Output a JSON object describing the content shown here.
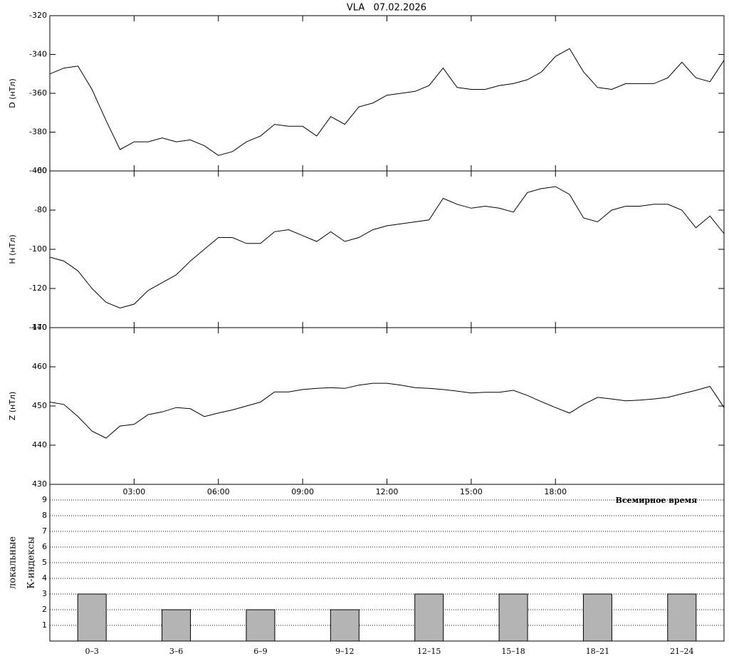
{
  "chart_data": [
    {
      "type": "line",
      "title": "VLA   07.02.2026",
      "ylabel": "D (нТл)",
      "xlim": [
        0,
        24
      ],
      "ylim": [
        -400,
        -320
      ],
      "yticks": [
        -320,
        -340,
        -360,
        -380,
        -400
      ],
      "x": [
        0,
        0.5,
        1,
        1.5,
        2,
        2.5,
        3,
        3.5,
        4,
        4.5,
        5,
        5.5,
        6,
        6.5,
        7,
        7.5,
        8,
        8.5,
        9,
        9.5,
        10,
        10.5,
        11,
        11.5,
        12,
        12.5,
        13,
        13.5,
        14,
        14.5,
        15,
        15.5,
        16,
        16.5,
        17,
        17.5,
        18,
        18.5,
        19,
        19.5,
        20,
        20.5,
        21,
        21.5,
        22,
        22.5,
        23,
        23.5,
        24
      ],
      "series": [
        {
          "name": "D",
          "color": "#000000",
          "values": [
            -350,
            -347,
            -346,
            -358,
            -374,
            -389,
            -385,
            -385,
            -383,
            -385,
            -384,
            -387,
            -392,
            -390,
            -385,
            -382,
            -376,
            -377,
            -377,
            -382,
            -372,
            -376,
            -367,
            -365,
            -361,
            -360,
            -359,
            -356,
            -347,
            -357,
            -358,
            -358,
            -356,
            -355,
            -353,
            -349,
            -341,
            -337,
            -349,
            -357,
            -358,
            -355,
            -355,
            -355,
            -352,
            -344,
            -352,
            -354,
            -343
          ]
        }
      ]
    },
    {
      "type": "line",
      "ylabel": "H (нТл)",
      "xlim": [
        0,
        24
      ],
      "ylim": [
        -140,
        -60
      ],
      "yticks": [
        -60,
        -80,
        -100,
        -120,
        -140
      ],
      "x": [
        0,
        0.5,
        1,
        1.5,
        2,
        2.5,
        3,
        3.5,
        4,
        4.5,
        5,
        5.5,
        6,
        6.5,
        7,
        7.5,
        8,
        8.5,
        9,
        9.5,
        10,
        10.5,
        11,
        11.5,
        12,
        12.5,
        13,
        13.5,
        14,
        14.5,
        15,
        15.5,
        16,
        16.5,
        17,
        17.5,
        18,
        18.5,
        19,
        19.5,
        20,
        20.5,
        21,
        21.5,
        22,
        22.5,
        23,
        23.5,
        24
      ],
      "series": [
        {
          "name": "H",
          "color": "#000000",
          "values": [
            -104,
            -106,
            -111,
            -120,
            -127,
            -130,
            -128,
            -121,
            -117,
            -113,
            -106,
            -100,
            -94,
            -94,
            -97,
            -97,
            -91,
            -90,
            -93,
            -96,
            -91,
            -96,
            -94,
            -90,
            -88,
            -87,
            -86,
            -85,
            -74,
            -77,
            -79,
            -78,
            -79,
            -81,
            -71,
            -69,
            -68,
            -72,
            -84,
            -86,
            -80,
            -78,
            -78,
            -77,
            -77,
            -80,
            -89,
            -83,
            -92
          ]
        }
      ]
    },
    {
      "type": "line",
      "ylabel": "Z (нТл)",
      "xlabel": "Всемирное время",
      "xlim": [
        0,
        24
      ],
      "ylim": [
        430,
        470
      ],
      "yticks": [
        470,
        460,
        450,
        440,
        430
      ],
      "xticks": [
        {
          "value": 3,
          "label": "03:00"
        },
        {
          "value": 6,
          "label": "06:00"
        },
        {
          "value": 9,
          "label": "09:00"
        },
        {
          "value": 12,
          "label": "12:00"
        },
        {
          "value": 15,
          "label": "15:00"
        },
        {
          "value": 18,
          "label": "18:00"
        }
      ],
      "x": [
        0,
        0.5,
        1,
        1.5,
        2,
        2.5,
        3,
        3.5,
        4,
        4.5,
        5,
        5.5,
        6,
        6.5,
        7,
        7.5,
        8,
        8.5,
        9,
        9.5,
        10,
        10.5,
        11,
        11.5,
        12,
        12.5,
        13,
        13.5,
        14,
        14.5,
        15,
        15.5,
        16,
        16.5,
        17,
        17.5,
        18,
        18.5,
        19,
        19.5,
        20,
        20.5,
        21,
        21.5,
        22,
        22.5,
        23,
        23.5,
        24
      ],
      "series": [
        {
          "name": "Z",
          "color": "#000000",
          "values": [
            451,
            450.4,
            447.3,
            443.6,
            441.8,
            444.9,
            445.3,
            447.8,
            448.5,
            449.6,
            449.3,
            447.3,
            448.2,
            449,
            450,
            451,
            453.6,
            453.6,
            454.2,
            454.5,
            454.7,
            454.5,
            455.3,
            455.8,
            455.8,
            455.3,
            454.7,
            454.5,
            454.2,
            453.8,
            453.3,
            453.5,
            453.5,
            454,
            452.7,
            451.1,
            449.6,
            448.2,
            450.4,
            452.2,
            451.8,
            451.3,
            451.5,
            451.8,
            452.2,
            453.1,
            454,
            455,
            449.6
          ]
        }
      ]
    },
    {
      "type": "bar",
      "ylabel": [
        "локальные",
        "К-индексы"
      ],
      "ylim": [
        0,
        10
      ],
      "yticks": [
        1,
        2,
        3,
        4,
        5,
        6,
        7,
        8,
        9
      ],
      "grid": true,
      "color": "#b4b4b4",
      "categories": [
        "0–3",
        "3–6",
        "6–9",
        "9–12",
        "12–15",
        "15–18",
        "18–21",
        "21–24"
      ],
      "values": [
        3,
        2,
        2,
        2,
        3,
        3,
        3,
        3
      ]
    }
  ]
}
